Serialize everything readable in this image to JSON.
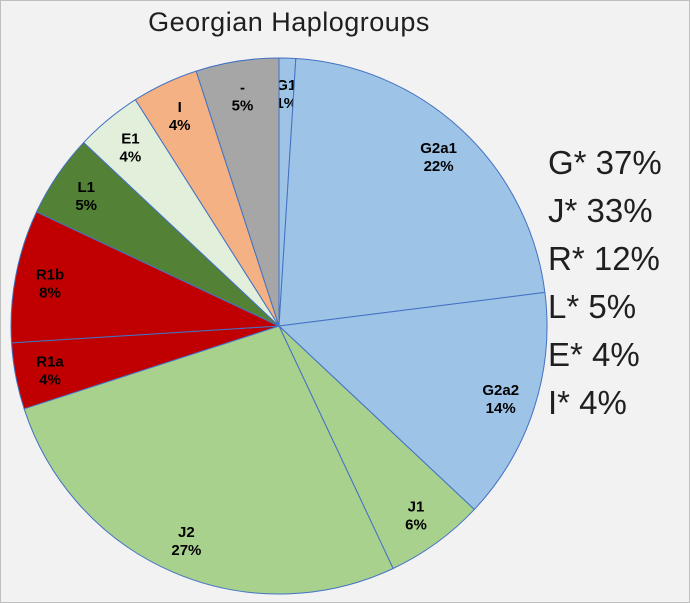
{
  "page": {
    "background": "#F2F2F2",
    "border_color": "#BFBFBF"
  },
  "chart_data": {
    "type": "pie",
    "title": "Georgian Haplogroups",
    "slices": [
      {
        "label": "G1",
        "value": 1,
        "color": "#9DC3E6"
      },
      {
        "label": "G2a1",
        "value": 22,
        "color": "#9DC3E6"
      },
      {
        "label": "G2a2",
        "value": 14,
        "color": "#9DC3E6"
      },
      {
        "label": "J1",
        "value": 6,
        "color": "#A9D18E"
      },
      {
        "label": "J2",
        "value": 27,
        "color": "#A9D18E"
      },
      {
        "label": "R1a",
        "value": 4,
        "color": "#C00000"
      },
      {
        "label": "R1b",
        "value": 8,
        "color": "#C00000"
      },
      {
        "label": "L1",
        "value": 5,
        "color": "#538135"
      },
      {
        "label": "E1",
        "value": 4,
        "color": "#E2EFDA"
      },
      {
        "label": "I",
        "value": 4,
        "color": "#F4B183"
      },
      {
        "label": "-",
        "value": 5,
        "color": "#A6A6A6"
      }
    ],
    "slice_stroke": "#4472C4",
    "start_angle_deg": -90,
    "direction": "clockwise",
    "label_radius_frac": 0.87,
    "label_value_suffix": "%",
    "legend_position": "none",
    "summary": [
      "G* 37%",
      "J* 33%",
      "R* 12%",
      "L* 5%",
      "E* 4%",
      "I* 4%"
    ]
  }
}
